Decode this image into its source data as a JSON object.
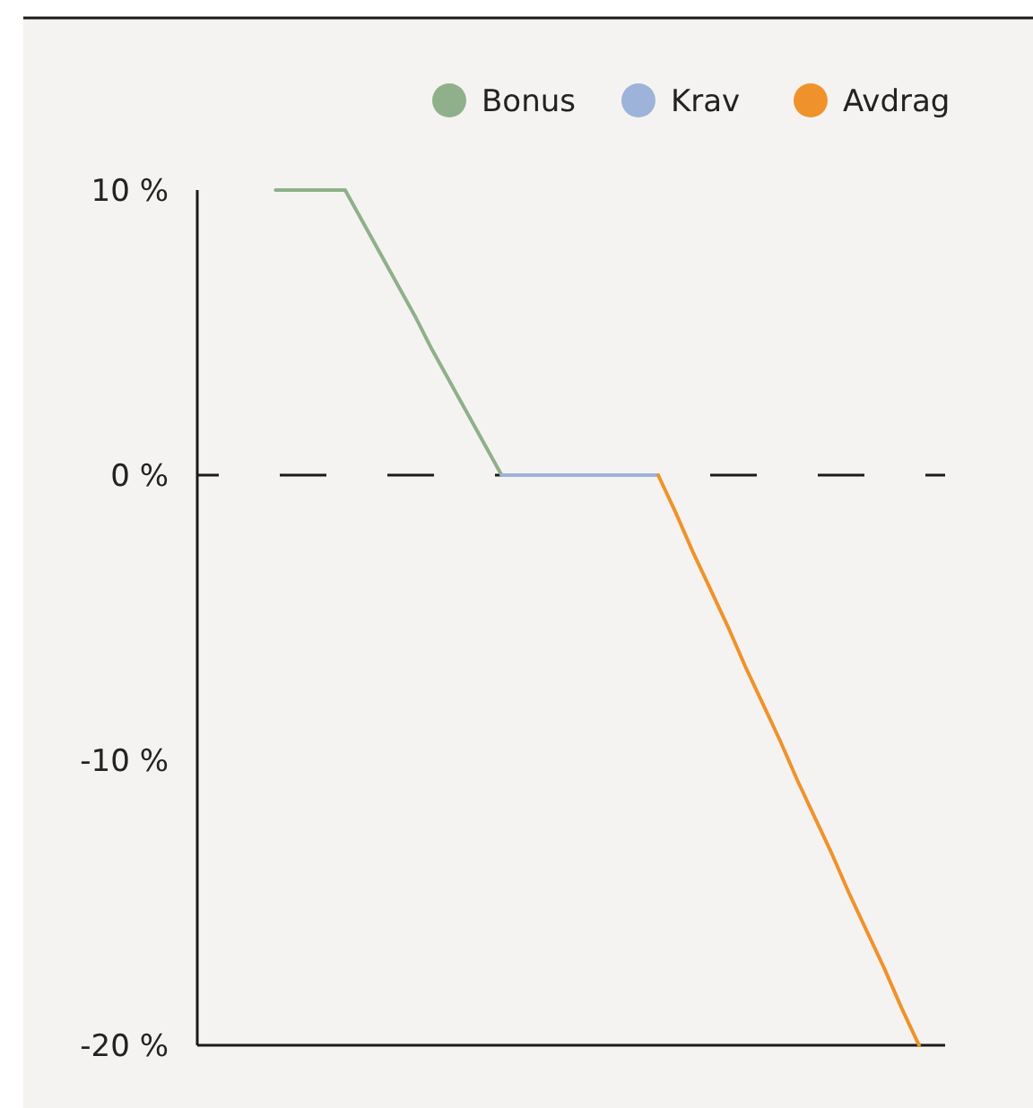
{
  "chart_data": {
    "type": "line",
    "ylim": [
      -20,
      10
    ],
    "categories": [
      null,
      null,
      null,
      null,
      null,
      null,
      null,
      null,
      null,
      null,
      null,
      null,
      null,
      null,
      null,
      null,
      null,
      null,
      null,
      null,
      null,
      null,
      null,
      null,
      null,
      null,
      null,
      null,
      null,
      null,
      null,
      null,
      null,
      null,
      null,
      null,
      null,
      null,
      null,
      null,
      null,
      null,
      null
    ],
    "yticks": [
      {
        "value": 10,
        "label": "10 %"
      },
      {
        "value": 0,
        "label": "0 %"
      },
      {
        "value": -10,
        "label": "-10 %"
      },
      {
        "value": -20,
        "label": "-20 %"
      }
    ],
    "tick_labels": "y",
    "legend": "top right",
    "line_style": "solid",
    "series": [
      {
        "name": "Bonus",
        "color": "#8fb08a",
        "values": [
          null,
          null,
          null,
          null,
          10,
          10,
          10,
          10,
          10,
          8.9,
          7.8,
          6.7,
          5.6,
          4.4,
          3.3,
          2.2,
          1.1,
          0,
          null,
          null,
          null,
          null,
          null,
          null,
          null,
          null,
          null,
          null,
          null,
          null,
          null,
          null,
          null,
          null,
          null,
          null,
          null,
          null,
          null,
          null,
          null,
          null,
          null
        ]
      },
      {
        "name": "Krav",
        "color": "#9db3d9",
        "values": [
          null,
          null,
          null,
          null,
          null,
          null,
          null,
          null,
          null,
          null,
          null,
          null,
          null,
          null,
          null,
          null,
          null,
          0,
          0,
          0,
          0,
          0,
          0,
          0,
          0,
          0,
          0,
          null,
          null,
          null,
          null,
          null,
          null,
          null,
          null,
          null,
          null,
          null,
          null,
          null,
          null,
          null,
          null
        ]
      },
      {
        "name": "Avdrag",
        "color": "#f0922b",
        "values": [
          null,
          null,
          null,
          null,
          null,
          null,
          null,
          null,
          null,
          null,
          null,
          null,
          null,
          null,
          null,
          null,
          null,
          null,
          null,
          null,
          null,
          null,
          null,
          null,
          null,
          null,
          0,
          -1.3,
          -2.7,
          -4,
          -5.3,
          -6.7,
          -8,
          -9.3,
          -10.7,
          -12,
          -13.3,
          -14.7,
          -16,
          -17.3,
          -18.7,
          -20,
          null
        ]
      }
    ],
    "ref_lines": [
      {
        "axis": "y",
        "value": 0,
        "color": "#1a1a1a",
        "line_style": "dashed"
      }
    ]
  }
}
